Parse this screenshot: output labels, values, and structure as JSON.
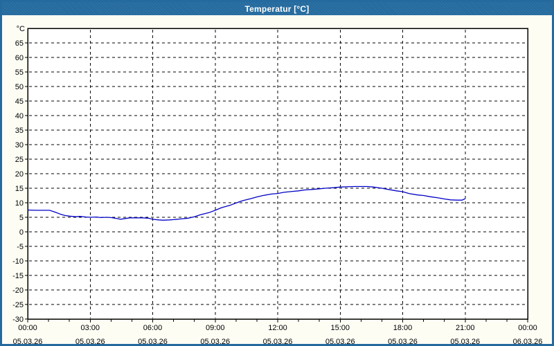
{
  "window": {
    "title": "Temperatur [°C]"
  },
  "colors": {
    "frame_blue": "#246a9e",
    "titlebar_blue": "#246a9e",
    "window_background": "#fdfdf4",
    "plot_background": "#ffffff",
    "grid_color": "#000000",
    "axis_text_color": "#000000",
    "title_text_color": "#ffffff",
    "line_color": "#0000c6"
  },
  "chart_data": {
    "type": "line",
    "title": "Temperatur [°C]",
    "ylabel": "°C",
    "unit_label": "°C",
    "grid": true,
    "legend": "none",
    "ylim": [
      -30,
      70
    ],
    "ytick_step": 5,
    "yticks": [
      65,
      60,
      55,
      50,
      45,
      40,
      35,
      30,
      25,
      20,
      15,
      10,
      5,
      0,
      -5,
      -10,
      -15,
      -20,
      -25,
      -30
    ],
    "xticks": [
      {
        "hour": 0,
        "time": "00:00",
        "date": "05.03.26"
      },
      {
        "hour": 3,
        "time": "03:00",
        "date": "05.03.26"
      },
      {
        "hour": 6,
        "time": "06:00",
        "date": "05.03.26"
      },
      {
        "hour": 9,
        "time": "09:00",
        "date": "05.03.26"
      },
      {
        "hour": 12,
        "time": "12:00",
        "date": "05.03.26"
      },
      {
        "hour": 15,
        "time": "15:00",
        "date": "05.03.26"
      },
      {
        "hour": 18,
        "time": "18:00",
        "date": "05.03.26"
      },
      {
        "hour": 21,
        "time": "21:00",
        "date": "05.03.26"
      },
      {
        "hour": 24,
        "time": "00:00",
        "date": "06.03.26"
      }
    ],
    "minor_xtick_every_hours": 1,
    "series": [
      {
        "name": "Temperatur",
        "x_hours": [
          0,
          0.4,
          0.8,
          1.05,
          1.3,
          1.6,
          1.8,
          2.0,
          2.3,
          2.5,
          2.8,
          3.0,
          3.3,
          3.5,
          3.8,
          4.0,
          4.2,
          4.45,
          4.7,
          4.9,
          5.2,
          5.5,
          5.8,
          6.0,
          6.3,
          6.5,
          6.8,
          7.0,
          7.3,
          7.7,
          8.0,
          8.3,
          8.7,
          9.0,
          9.3,
          9.7,
          10.0,
          10.3,
          10.7,
          11.0,
          11.3,
          11.7,
          12.0,
          12.3,
          12.7,
          13.0,
          13.3,
          13.7,
          14.0,
          14.3,
          14.7,
          15.0,
          15.3,
          15.7,
          16.0,
          16.3,
          16.6,
          17.0,
          17.3,
          17.7,
          18.0,
          18.3,
          18.7,
          19.0,
          19.3,
          19.7,
          20.0,
          20.3,
          20.6,
          20.85,
          21.0
        ],
        "values": [
          7.5,
          7.4,
          7.4,
          7.4,
          6.8,
          6.0,
          5.6,
          5.4,
          5.2,
          5.3,
          5.1,
          5.0,
          5.1,
          4.9,
          5.0,
          4.9,
          4.7,
          4.3,
          4.6,
          4.8,
          4.8,
          4.8,
          4.7,
          4.3,
          4.1,
          4.0,
          4.1,
          4.2,
          4.4,
          4.7,
          5.2,
          5.9,
          6.6,
          7.4,
          8.3,
          9.1,
          9.9,
          10.7,
          11.4,
          12.0,
          12.5,
          13.0,
          13.2,
          13.6,
          13.9,
          14.1,
          14.4,
          14.6,
          14.8,
          15.0,
          15.2,
          15.4,
          15.5,
          15.6,
          15.6,
          15.6,
          15.4,
          15.0,
          14.6,
          14.1,
          13.8,
          13.2,
          12.7,
          12.5,
          12.1,
          11.7,
          11.3,
          11.0,
          10.9,
          10.9,
          11.4
        ]
      }
    ]
  }
}
